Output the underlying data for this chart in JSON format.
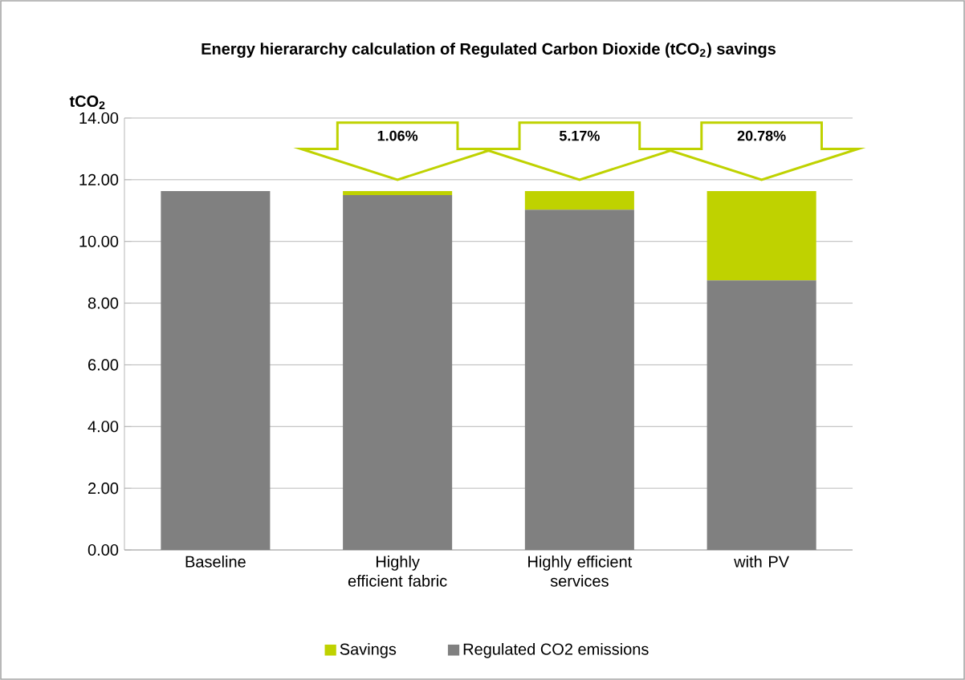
{
  "chart_data": {
    "type": "bar",
    "stacked": true,
    "title": "Energy hierararchy calculation of Regulated Carbon Dioxide (tCO$_{2}$) savings",
    "ylabel": "tCO$_{2}$",
    "categories": [
      "Baseline",
      "Highly efficient fabric",
      "Highly efficient services",
      "with PV"
    ],
    "series": [
      {
        "name": "Regulated CO2 emissions",
        "color": "#808080",
        "values": [
          11.63,
          11.5,
          11.03,
          8.74
        ]
      },
      {
        "name": "Savings",
        "color": "#bfd200",
        "values": [
          0,
          0.13,
          0.6,
          2.89
        ]
      }
    ],
    "ylim": [
      0,
      14
    ],
    "yticks": [
      {
        "value": 0,
        "label": "0.00"
      },
      {
        "value": 2,
        "label": "2.00"
      },
      {
        "value": 4,
        "label": "4.00"
      },
      {
        "value": 6,
        "label": "6.00"
      },
      {
        "value": 8,
        "label": "8.00"
      },
      {
        "value": 10,
        "label": "10.00"
      },
      {
        "value": 12,
        "label": "12.00"
      },
      {
        "value": 14,
        "label": "14.00"
      }
    ],
    "grid": "y",
    "legend": "bottom",
    "annotations": [
      "1.06%",
      "5.17%",
      "20.78%"
    ]
  }
}
